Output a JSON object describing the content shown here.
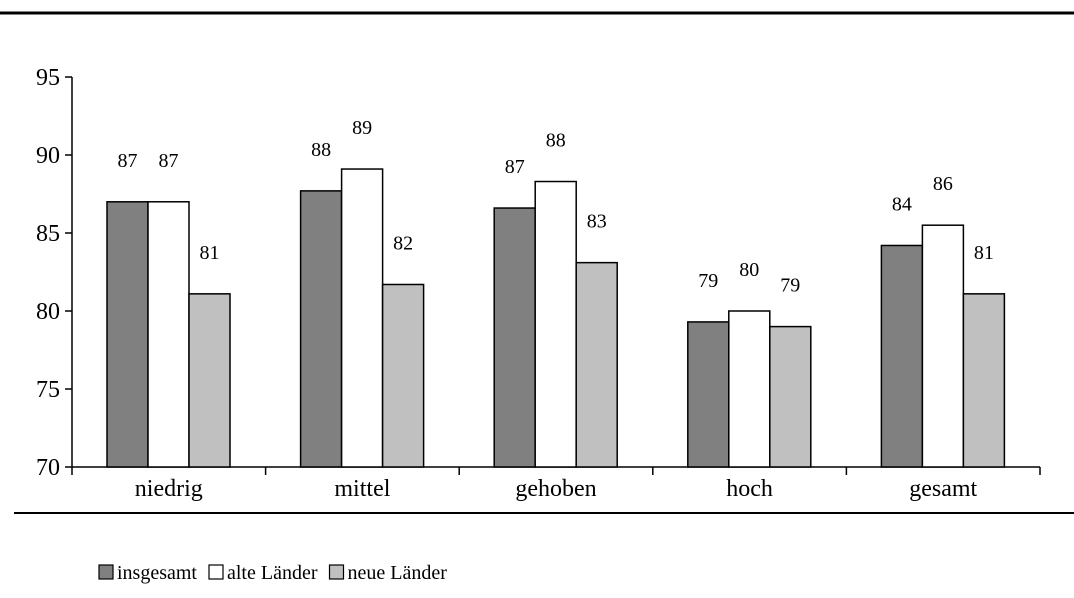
{
  "chart_data": {
    "type": "bar",
    "title": "",
    "xlabel": "",
    "ylabel": "",
    "ylim": [
      70,
      95
    ],
    "yticks": [
      70,
      75,
      80,
      85,
      90,
      95
    ],
    "grid": false,
    "legend_position": "bottom-left",
    "categories": [
      "niedrig",
      "mittel",
      "gehoben",
      "hoch",
      "gesamt"
    ],
    "series": [
      {
        "name": "insgesamt",
        "values": [
          87.0,
          87.7,
          86.6,
          79.3,
          84.2
        ],
        "labels": [
          "87",
          "88",
          "87",
          "79",
          "84"
        ],
        "color": "#808080"
      },
      {
        "name": "alte Länder",
        "values": [
          87.0,
          89.1,
          88.3,
          80.0,
          85.5
        ],
        "labels": [
          "87",
          "89",
          "88",
          "80",
          "86"
        ],
        "color": "#ffffff"
      },
      {
        "name": "neue Länder",
        "values": [
          81.1,
          81.7,
          83.1,
          79.0,
          81.1
        ],
        "labels": [
          "81",
          "82",
          "83",
          "79",
          "81"
        ],
        "color": "#c0c0c0"
      }
    ]
  }
}
